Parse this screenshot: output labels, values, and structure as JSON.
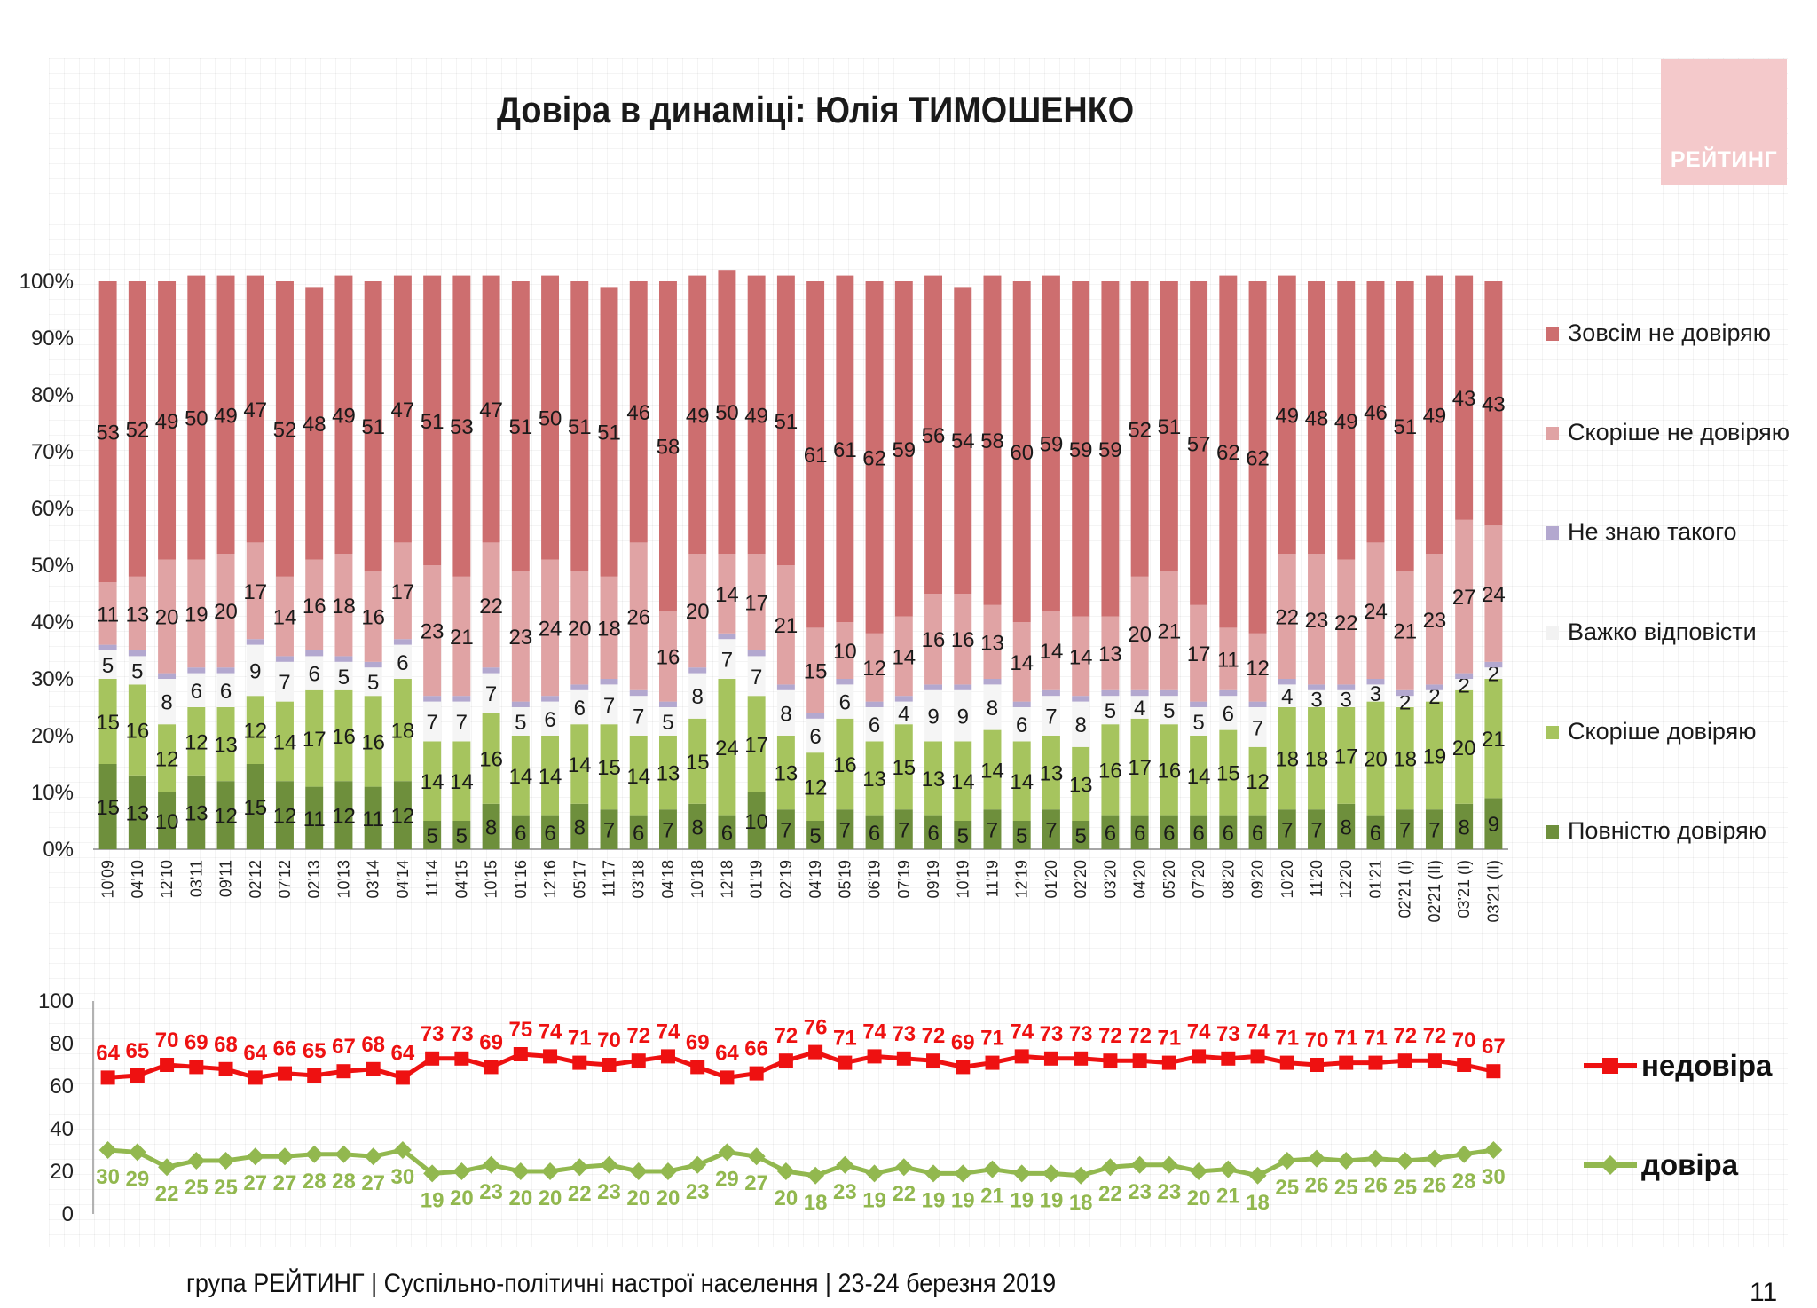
{
  "header": {
    "title": "Довіра в динаміці: Юлія ТИМОШЕНКО",
    "logo_text": "РЕЙТИНГ"
  },
  "footer": {
    "text": "група РЕЙТИНГ | Суспільно-політичні настрої населення  | 23-24 березня 2019",
    "page_number": "11"
  },
  "chart_data": [
    {
      "type": "bar",
      "stacked": true,
      "percent": true,
      "ylim": [
        0,
        100
      ],
      "yticks": [
        "0%",
        "10%",
        "20%",
        "30%",
        "40%",
        "50%",
        "60%",
        "70%",
        "80%",
        "90%",
        "100%"
      ],
      "categories": [
        "10'09",
        "04'10",
        "12'10",
        "03'11",
        "09'11",
        "02'12",
        "07'12",
        "02'13",
        "10'13",
        "03'14",
        "04'14",
        "11'14",
        "04'15",
        "10'15",
        "01'16",
        "12'16",
        "05'17",
        "11'17",
        "03'18",
        "04'18",
        "10'18",
        "12'18",
        "01'19",
        "02'19",
        "04'19",
        "05'19",
        "06'19",
        "07'19",
        "09'19",
        "10'19",
        "11'19",
        "12'19",
        "01'20",
        "02'20",
        "03'20",
        "04'20",
        "05'20",
        "07'20",
        "08'20",
        "09'20",
        "10'20",
        "11'20",
        "12'20",
        "01'21",
        "02'21 (I)",
        "02'21 (II)",
        "03'21 (I)",
        "03'21 (II)"
      ],
      "series": [
        {
          "name": "Повністю довіряю",
          "color": "#6e8f3c",
          "values": [
            15,
            13,
            10,
            13,
            12,
            15,
            12,
            11,
            12,
            11,
            12,
            5,
            5,
            8,
            6,
            6,
            8,
            7,
            6,
            7,
            8,
            6,
            10,
            7,
            5,
            7,
            6,
            7,
            6,
            5,
            7,
            5,
            7,
            5,
            6,
            6,
            6,
            6,
            6,
            6,
            7,
            7,
            8,
            6,
            7,
            7,
            8,
            9
          ]
        },
        {
          "name": "Скоріше довіряю",
          "color": "#a6c45e",
          "values": [
            15,
            16,
            12,
            12,
            13,
            12,
            14,
            17,
            16,
            16,
            18,
            14,
            14,
            16,
            14,
            14,
            14,
            15,
            14,
            13,
            15,
            24,
            17,
            13,
            12,
            16,
            13,
            15,
            13,
            14,
            14,
            14,
            13,
            13,
            16,
            17,
            16,
            14,
            15,
            12,
            18,
            18,
            17,
            20,
            18,
            19,
            20,
            21
          ]
        },
        {
          "name": "Важко відповісти",
          "color": "#f5f5f5",
          "values": [
            5,
            5,
            8,
            6,
            6,
            9,
            7,
            6,
            5,
            5,
            6,
            7,
            7,
            7,
            5,
            6,
            6,
            7,
            7,
            5,
            8,
            7,
            7,
            8,
            6,
            6,
            6,
            4,
            9,
            9,
            8,
            6,
            7,
            8,
            5,
            4,
            5,
            5,
            6,
            7,
            4,
            3,
            3,
            3,
            2,
            2,
            2,
            2
          ]
        },
        {
          "name": "Не знаю такого",
          "color": "#b3a8cf",
          "values": [
            1,
            1,
            1,
            1,
            1,
            1,
            1,
            1,
            1,
            1,
            1,
            1,
            1,
            1,
            1,
            1,
            1,
            1,
            1,
            1,
            1,
            1,
            1,
            1,
            1,
            1,
            1,
            1,
            1,
            1,
            1,
            1,
            1,
            1,
            1,
            1,
            1,
            1,
            1,
            1,
            1,
            1,
            1,
            1,
            1,
            1,
            1,
            1
          ]
        },
        {
          "name": "Скоріше не довіряю",
          "color": "#e0a3a4",
          "values": [
            11,
            13,
            20,
            19,
            20,
            17,
            14,
            16,
            18,
            16,
            17,
            23,
            21,
            22,
            23,
            24,
            20,
            18,
            26,
            16,
            20,
            14,
            17,
            21,
            15,
            10,
            12,
            14,
            16,
            16,
            13,
            14,
            14,
            14,
            13,
            20,
            21,
            17,
            11,
            12,
            22,
            23,
            22,
            24,
            21,
            23,
            27,
            24
          ]
        },
        {
          "name": "Зовсім не довіряю",
          "color": "#cd6e6f",
          "values": [
            53,
            52,
            49,
            50,
            49,
            47,
            52,
            48,
            49,
            51,
            47,
            51,
            53,
            47,
            51,
            50,
            51,
            51,
            46,
            58,
            49,
            50,
            49,
            51,
            61,
            61,
            62,
            59,
            56,
            54,
            58,
            60,
            59,
            59,
            59,
            52,
            51,
            57,
            62,
            62,
            49,
            48,
            49,
            46,
            51,
            49,
            43,
            43
          ]
        }
      ],
      "labeled_series": [
        "Повністю довіряю",
        "Скоріше довіряю",
        "Важко відповісти",
        "Скоріше не довіряю",
        "Зовсім не довіряю"
      ],
      "legend_position": "right",
      "legend_order": [
        "Зовсім не довіряю",
        "Скоріше не довіряю",
        "Не знаю такого",
        "Важко відповісти",
        "Скоріше довіряю",
        "Повністю довіряю"
      ]
    },
    {
      "type": "line",
      "ylim": [
        0,
        100
      ],
      "yticks": [
        "0",
        "20",
        "40",
        "60",
        "80",
        "100"
      ],
      "series": [
        {
          "name": "недовіра",
          "color": "#ee1111",
          "marker": "square",
          "values": [
            64,
            65,
            70,
            69,
            68,
            64,
            66,
            65,
            67,
            68,
            64,
            73,
            73,
            69,
            75,
            74,
            71,
            70,
            72,
            74,
            69,
            64,
            66,
            72,
            76,
            71,
            74,
            73,
            72,
            69,
            71,
            74,
            73,
            73,
            72,
            72,
            71,
            74,
            73,
            74,
            71,
            70,
            71,
            71,
            72,
            72,
            70,
            67
          ]
        },
        {
          "name": "довіра",
          "color": "#92b84f",
          "marker": "diamond",
          "values": [
            30,
            29,
            22,
            25,
            25,
            27,
            27,
            28,
            28,
            27,
            30,
            19,
            20,
            23,
            20,
            20,
            22,
            23,
            20,
            20,
            23,
            29,
            27,
            20,
            18,
            23,
            19,
            22,
            19,
            19,
            21,
            19,
            19,
            18,
            22,
            23,
            23,
            20,
            21,
            18,
            25,
            26,
            25,
            26,
            25,
            26,
            28,
            30
          ]
        }
      ],
      "legend_position": "right"
    }
  ]
}
